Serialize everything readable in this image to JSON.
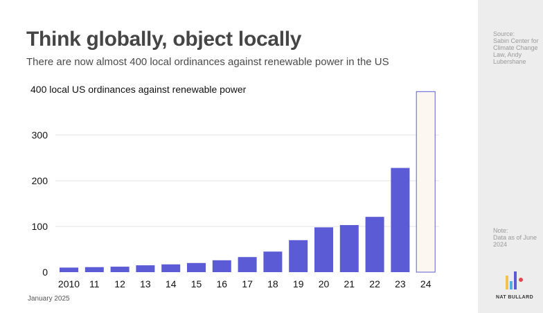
{
  "header": {
    "title": "Think globally, object locally",
    "subtitle": "There are now almost 400 local ordinances against renewable power in the US"
  },
  "sidebar": {
    "source_heading": "Source:",
    "source_body": "Sabin Center for Climate Change Law, Andy Lubershane",
    "note_heading": "Note:",
    "note_body": "Data as of June 2024",
    "logo_text": "NAT BULLARD",
    "logo_colors": [
      "#f2c14e",
      "#4fb3d9",
      "#5b5bd6",
      "#e0464f"
    ]
  },
  "footer": {
    "date": "January 2025"
  },
  "colors": {
    "bar": "#5b5bd6",
    "highlight_fill": "#fdf7f1",
    "highlight_stroke": "#5b5bd6",
    "grid": "#e3e3e3",
    "sidebar_bg": "#ededed"
  },
  "chart_data": {
    "type": "bar",
    "title": "400 local US ordinances against renewable power",
    "categories": [
      "2010",
      "11",
      "12",
      "13",
      "14",
      "15",
      "16",
      "17",
      "18",
      "19",
      "20",
      "21",
      "22",
      "23",
      "24"
    ],
    "values": [
      10,
      11,
      12,
      15,
      17,
      20,
      26,
      33,
      45,
      70,
      98,
      103,
      121,
      228,
      395
    ],
    "highlight_index": 14,
    "ylim": [
      0,
      400
    ],
    "yticks": [
      0,
      100,
      200,
      300
    ],
    "grid": true,
    "xlabel": "",
    "ylabel": ""
  }
}
